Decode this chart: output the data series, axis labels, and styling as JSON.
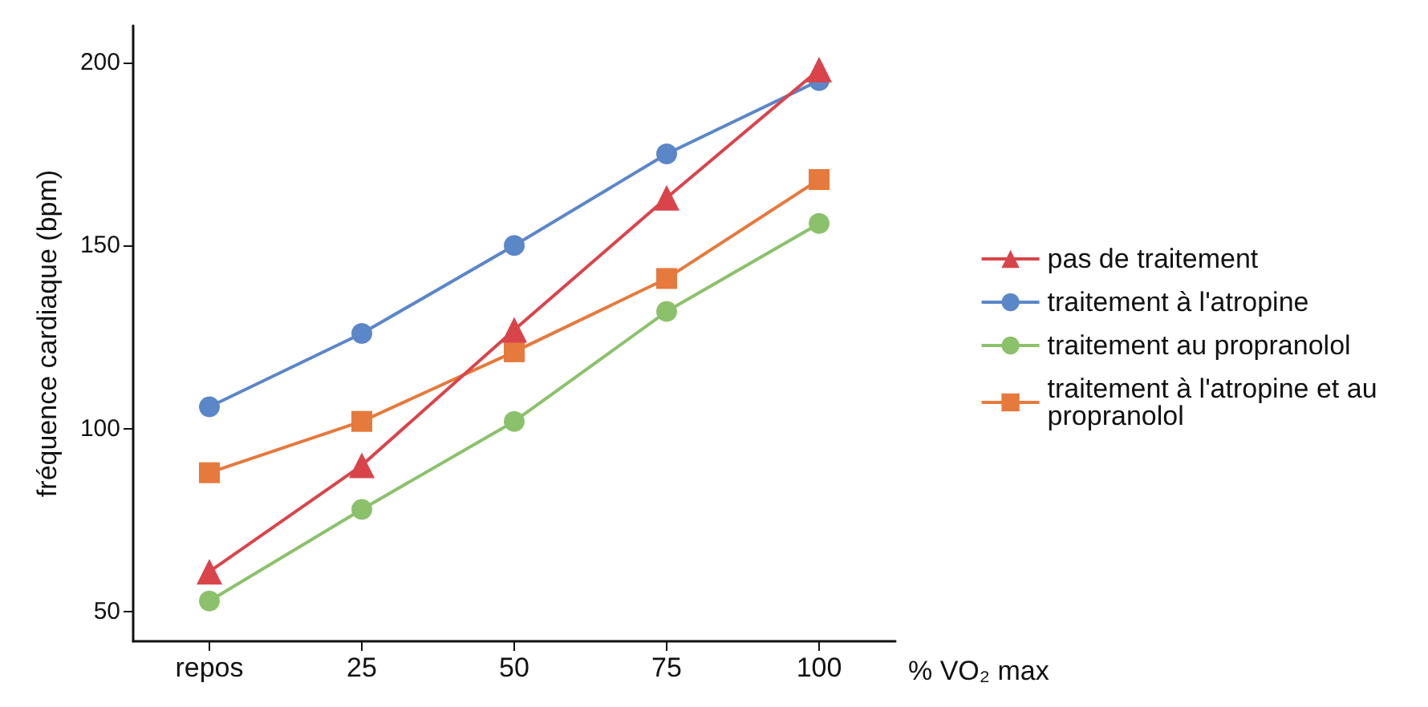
{
  "chart_data": {
    "type": "line",
    "xlabel": "% VO₂ max",
    "ylabel": "fréquence cardiaque (bpm)",
    "categories": [
      "repos",
      "25",
      "50",
      "75",
      "100"
    ],
    "ylim": [
      42,
      210
    ],
    "yticks": [
      50,
      100,
      150,
      200
    ],
    "grid": false,
    "legend": "right",
    "line_style": "solid",
    "series": [
      {
        "name": "pas de traitement",
        "color": "#d9444b",
        "marker": "triangle",
        "values": [
          61,
          90,
          127,
          163,
          198
        ]
      },
      {
        "name": "traitement à l'atropine",
        "color": "#5b86c8",
        "marker": "circle",
        "values": [
          106,
          126,
          150,
          175,
          195
        ]
      },
      {
        "name": "traitement au propranolol",
        "color": "#8cc16b",
        "marker": "circle",
        "values": [
          53,
          78,
          102,
          132,
          156
        ]
      },
      {
        "name": "traitement à l'atropine et au propranolol",
        "color": "#e6793c",
        "marker": "square",
        "values": [
          88,
          102,
          121,
          141,
          168
        ]
      }
    ]
  }
}
